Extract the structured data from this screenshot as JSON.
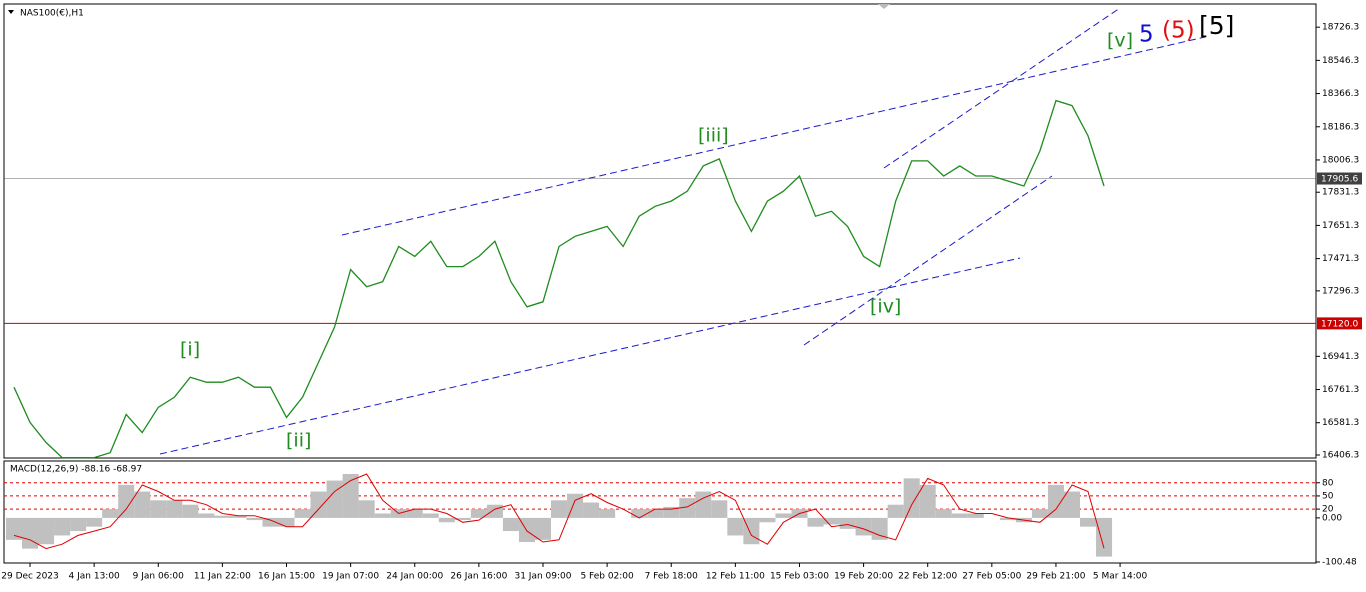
{
  "chart_data": [
    {
      "type": "line",
      "title": "NAS100(€),H1",
      "categories": [
        null,
        "29 Dec 2023",
        null,
        null,
        null,
        "4 Jan 13:00",
        null,
        null,
        null,
        "9 Jan 06:00",
        null,
        null,
        null,
        "11 Jan 22:00",
        null,
        null,
        null,
        "16 Jan 15:00",
        null,
        null,
        null,
        "19 Jan 07:00",
        null,
        null,
        null,
        "24 Jan 00:00",
        null,
        null,
        null,
        "26 Jan 16:00",
        null,
        null,
        null,
        "31 Jan 09:00",
        null,
        null,
        null,
        "5 Feb 02:00",
        null,
        null,
        null,
        "7 Feb 18:00",
        null,
        null,
        null,
        "12 Feb 11:00",
        null,
        null,
        null,
        "15 Feb 03:00",
        null,
        null,
        null,
        "19 Feb 20:00",
        null,
        null,
        null,
        "22 Feb 12:00",
        null,
        null,
        null,
        "27 Feb 05:00",
        null,
        null,
        null,
        "29 Feb 21:00",
        null,
        null,
        null,
        "5 Mar 14:00"
      ],
      "values": [
        16774,
        16583,
        16474,
        16392,
        16392,
        16392,
        16419,
        16626,
        16528,
        16665,
        16719,
        16828,
        16801,
        16801,
        16828,
        16774,
        16774,
        16610,
        16719,
        16910,
        17101,
        17412,
        17319,
        17346,
        17537,
        17483,
        17565,
        17428,
        17428,
        17483,
        17565,
        17346,
        17210,
        17237,
        17537,
        17592,
        17619,
        17646,
        17537,
        17701,
        17755,
        17783,
        17837,
        17974,
        18012,
        17783,
        17619,
        17783,
        17837,
        17919,
        17701,
        17728,
        17646,
        17483,
        17428,
        17783,
        18001,
        18001,
        17919,
        17974,
        17919,
        17919,
        17892,
        17865,
        18055,
        18328,
        18301,
        18137,
        17865,
        null
      ],
      "color": "#1e8c1e",
      "ylim": [
        16390,
        18852
      ],
      "yticks": [
        18726.3,
        18546.3,
        18366.3,
        18186.3,
        18006.3,
        17831.3,
        17651.3,
        17471.3,
        17296.3,
        16941.3,
        16761.3,
        16581.3,
        16406.3
      ],
      "markers": [
        {
          "value": 17905.6,
          "label": "17905.6",
          "color": "#404040"
        },
        {
          "value": 17120,
          "label": "17120.0",
          "color": "#cc0000"
        }
      ],
      "annotations": [
        "[i]",
        "[ii]",
        "[iii]",
        "[iv]",
        "[v]",
        "5",
        "(5)",
        "[5]"
      ]
    },
    {
      "type": "macd",
      "title": "MACD(12,26,9) -88.16 -68.97",
      "series": [
        {
          "color": "#c0c0c0",
          "values": [
            -50,
            -70,
            -60,
            -40,
            -30,
            -20,
            20,
            75,
            60,
            40,
            40,
            30,
            10,
            5,
            5,
            -5,
            -20,
            -20,
            20,
            60,
            85,
            100,
            40,
            10,
            20,
            20,
            10,
            -10,
            -5,
            20,
            30,
            -30,
            -55,
            -50,
            40,
            55,
            35,
            20,
            0,
            20,
            20,
            25,
            45,
            60,
            40,
            -40,
            -60,
            -10,
            10,
            20,
            -20,
            -15,
            -25,
            -40,
            -50,
            30,
            90,
            75,
            20,
            10,
            10,
            0,
            -5,
            -10,
            20,
            75,
            60,
            -20,
            -88.16,
            null
          ]
        },
        {
          "color": "#e00000",
          "values": [
            -40,
            -50,
            -70,
            -60,
            -40,
            -30,
            -20,
            20,
            75,
            60,
            40,
            40,
            30,
            10,
            5,
            5,
            -5,
            -20,
            -20,
            20,
            60,
            85,
            100,
            40,
            10,
            20,
            20,
            10,
            -10,
            -5,
            20,
            30,
            -30,
            -55,
            -50,
            40,
            55,
            35,
            20,
            0,
            20,
            20,
            25,
            45,
            60,
            40,
            -40,
            -60,
            -10,
            10,
            20,
            -20,
            -15,
            -25,
            -40,
            -50,
            30,
            90,
            75,
            20,
            10,
            10,
            0,
            -5,
            -10,
            20,
            75,
            60,
            -68.97,
            null
          ]
        }
      ],
      "ylim": [
        -100.48,
        125
      ],
      "yticks": [
        80,
        50,
        {
          "value": 0,
          "label": "0.00"
        },
        20,
        -100.48
      ],
      "levels": [
        80,
        50,
        20
      ]
    }
  ]
}
